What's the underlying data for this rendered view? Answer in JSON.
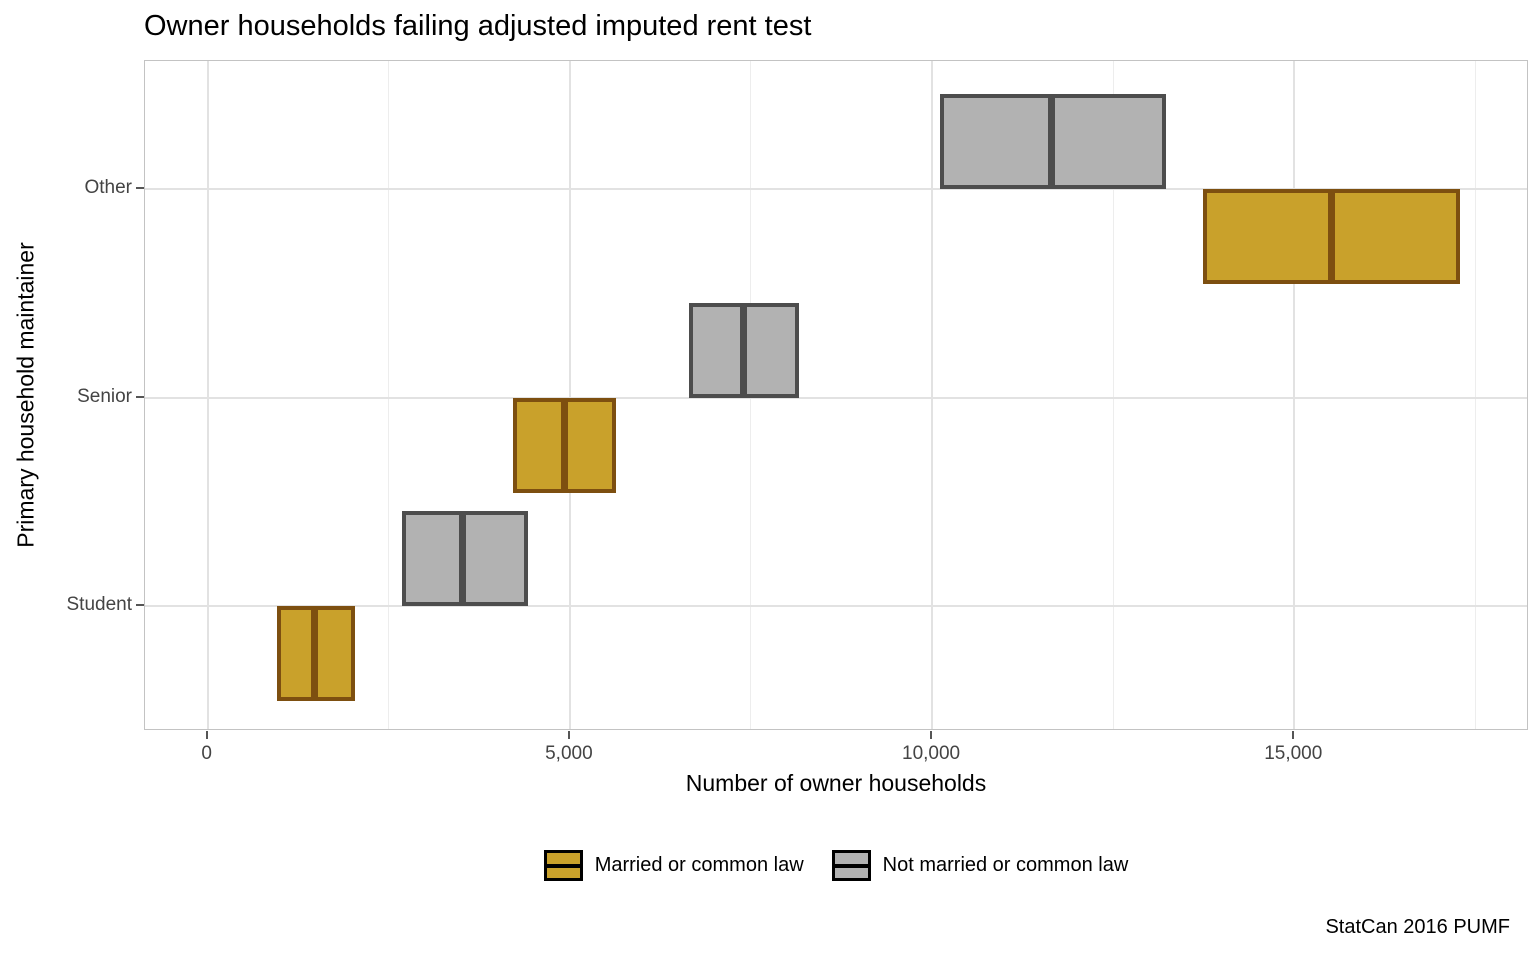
{
  "title": "Owner households failing adjusted imputed rent test",
  "caption": "StatCan 2016 PUMF",
  "chart_data": {
    "type": "crossbar",
    "orientation": "horizontal",
    "title": "Owner households failing adjusted imputed rent test",
    "xlabel": "Number of owner households",
    "ylabel": "Primary household maintainer",
    "categories_top_to_bottom": [
      "Other",
      "Senior",
      "Student"
    ],
    "x_ticks": [
      0,
      5000,
      10000,
      15000
    ],
    "x_tick_labels": [
      "0",
      "5,000",
      "10,000",
      "15,000"
    ],
    "x_minor_ticks": [
      2500,
      7500,
      12500,
      17500
    ],
    "xlim": [
      -865,
      18240
    ],
    "grid": "major-and-minor-x, major-y",
    "legend_position": "bottom",
    "series": [
      {
        "name": "Married or common law",
        "fill": "#c9a12b",
        "stroke": "#7d4f10",
        "points": [
          {
            "category": "Student",
            "xmin": 960,
            "mid": 1470,
            "xmax": 2030
          },
          {
            "category": "Senior",
            "xmin": 4210,
            "mid": 4920,
            "xmax": 5640
          },
          {
            "category": "Other",
            "xmin": 13740,
            "mid": 15520,
            "xmax": 17290
          }
        ]
      },
      {
        "name": "Not married or common law",
        "fill": "#b2b2b2",
        "stroke": "#4d4d4d",
        "points": [
          {
            "category": "Student",
            "xmin": 2680,
            "mid": 3520,
            "xmax": 4420
          },
          {
            "category": "Senior",
            "xmin": 6640,
            "mid": 7400,
            "xmax": 8160
          },
          {
            "category": "Other",
            "xmin": 10110,
            "mid": 11650,
            "xmax": 13230
          }
        ]
      }
    ]
  }
}
